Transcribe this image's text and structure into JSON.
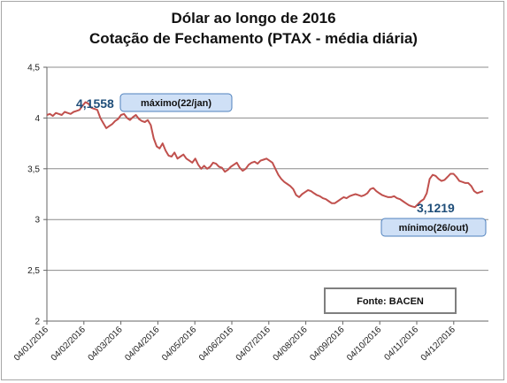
{
  "title_line1": "Dólar ao longo de 2016",
  "title_line2": "Cotação de Fechamento (PTAX - média diária)",
  "source": "Fonte: BACEN",
  "colors": {
    "series": "#c0504d",
    "callout_fill": "#cfe0f6",
    "callout_border": "#4f81bd",
    "value_label": "#1f4e79"
  },
  "annotations": {
    "max_value": "4,1558",
    "max_label": "máximo(22/jan)",
    "min_value": "3,1219",
    "min_label": "mínimo(26/out)"
  },
  "chart_data": {
    "type": "line",
    "xlabel": "",
    "ylabel": "",
    "ylim": [
      2,
      4.5
    ],
    "yticks": [
      "2",
      "2,5",
      "3",
      "3,5",
      "4",
      "4,5"
    ],
    "ytick_values": [
      2,
      2.5,
      3,
      3.5,
      4,
      4.5
    ],
    "xticks": [
      "04/01/2016",
      "04/02/2016",
      "04/03/2016",
      "04/04/2016",
      "04/05/2016",
      "04/06/2016",
      "04/07/2016",
      "04/08/2016",
      "04/09/2016",
      "04/10/2016",
      "04/11/2016",
      "04/12/2016"
    ],
    "grid": true,
    "legend": "none",
    "series": [
      {
        "values": [
          4.03,
          4.04,
          4.02,
          4.05,
          4.04,
          4.03,
          4.06,
          4.05,
          4.04,
          4.06,
          4.07,
          4.08,
          4.12,
          4.1558,
          4.14,
          4.1,
          4.09,
          4.08,
          4.0,
          3.95,
          3.9,
          3.92,
          3.94,
          3.97,
          3.99,
          4.03,
          4.04,
          4.0,
          3.98,
          4.01,
          4.03,
          3.99,
          3.97,
          3.96,
          3.98,
          3.93,
          3.8,
          3.72,
          3.7,
          3.75,
          3.68,
          3.63,
          3.62,
          3.66,
          3.6,
          3.62,
          3.64,
          3.6,
          3.58,
          3.56,
          3.6,
          3.54,
          3.5,
          3.53,
          3.5,
          3.52,
          3.56,
          3.55,
          3.52,
          3.51,
          3.47,
          3.49,
          3.52,
          3.54,
          3.56,
          3.51,
          3.48,
          3.5,
          3.54,
          3.56,
          3.57,
          3.55,
          3.58,
          3.59,
          3.6,
          3.58,
          3.56,
          3.5,
          3.44,
          3.4,
          3.37,
          3.35,
          3.33,
          3.3,
          3.24,
          3.22,
          3.25,
          3.27,
          3.29,
          3.28,
          3.26,
          3.24,
          3.23,
          3.21,
          3.2,
          3.18,
          3.16,
          3.16,
          3.18,
          3.2,
          3.22,
          3.21,
          3.23,
          3.24,
          3.25,
          3.24,
          3.23,
          3.24,
          3.26,
          3.3,
          3.31,
          3.28,
          3.26,
          3.24,
          3.23,
          3.22,
          3.22,
          3.23,
          3.21,
          3.2,
          3.18,
          3.16,
          3.14,
          3.13,
          3.1219,
          3.15,
          3.18,
          3.2,
          3.26,
          3.4,
          3.44,
          3.43,
          3.4,
          3.38,
          3.39,
          3.42,
          3.45,
          3.45,
          3.42,
          3.38,
          3.37,
          3.36,
          3.36,
          3.33,
          3.28,
          3.26,
          3.27,
          3.28
        ]
      }
    ]
  }
}
